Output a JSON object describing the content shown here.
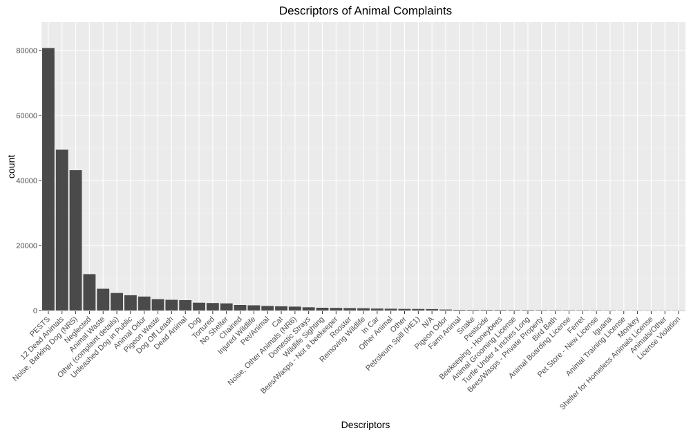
{
  "chart_data": {
    "type": "bar",
    "title": "Descriptors of Animal Complaints",
    "xlabel": "Descriptors",
    "ylabel": "count",
    "ylim": [
      0,
      86000
    ],
    "yticks": [
      0,
      20000,
      40000,
      60000,
      80000
    ],
    "grid": true,
    "categories": [
      "PESTS",
      "12 Dead Animals",
      "Noise, Barking Dog (NR5)",
      "Neglected",
      "Animal Waste",
      "Other (complaint details)",
      "Unleashed Dog in Public",
      "Animal Odor",
      "Pigeon Waste",
      "Dog Off Leash",
      "Dead Animal",
      "Dog",
      "Tortured",
      "No Shelter",
      "Chained",
      "Injured Wildlife",
      "Pet/Animal",
      "Cat",
      "Noise, Other Animals (NR6)",
      "Domestic Strays",
      "Wildlife Sighting",
      "Bees/Wasps - Not a beekeeper",
      "Rooster",
      "Removing Wildlife",
      "In Car",
      "Other Animal",
      "Other",
      "Petroleum Spill (HE1)",
      "N/A",
      "Pigeon Odor",
      "Farm Animal",
      "Snake",
      "Pesticide",
      "Beekeeping - Honeybees",
      "Animal Grooming License",
      "Turtle Under 4 inches Long",
      "Bees/Wasps - Private Property",
      "Bird Bath",
      "Animal Boarding License",
      "Ferret",
      "Pet Store - New License",
      "Iguana",
      "Animal Training License",
      "Monkey",
      "Shelter for Homeless Animals License",
      "Animals/Other",
      "License Violation"
    ],
    "values": [
      80800,
      49500,
      43200,
      11200,
      6700,
      5400,
      4700,
      4300,
      3500,
      3300,
      3200,
      2400,
      2300,
      2200,
      1700,
      1600,
      1400,
      1300,
      1200,
      1000,
      850,
      800,
      750,
      700,
      600,
      550,
      500,
      480,
      450,
      300,
      200,
      180,
      170,
      160,
      150,
      140,
      130,
      120,
      110,
      100,
      90,
      80,
      40,
      30,
      20,
      15,
      10
    ],
    "colors": {
      "bar": "#4a4a4a",
      "panel": "#ebebeb",
      "grid_major": "#ffffff",
      "grid_minor": "#f2f2f2",
      "tick_text": "#4d4d4d"
    }
  }
}
